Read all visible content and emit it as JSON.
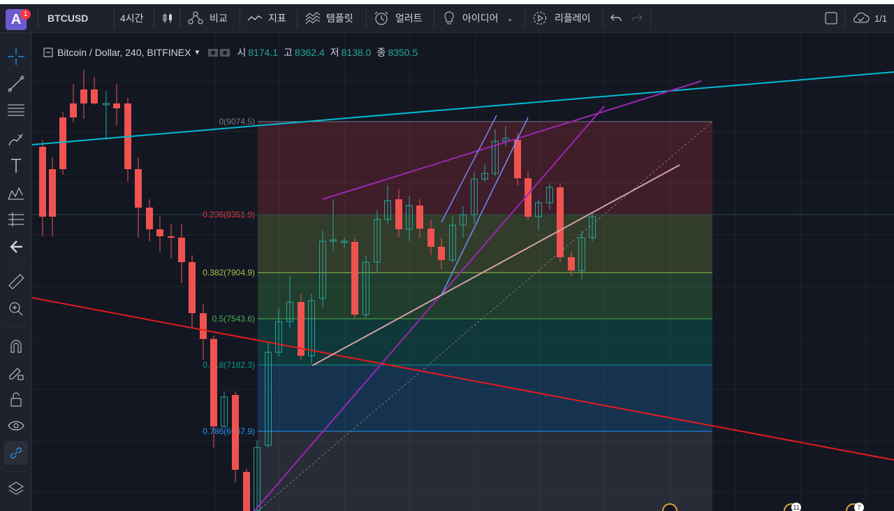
{
  "toolbar": {
    "avatar_letter": "A",
    "notification_count": "1",
    "symbol": "BTCUSD",
    "interval": "4시간",
    "compare_label": "비교",
    "indicators_label": "지표",
    "templates_label": "템플릿",
    "alert_label": "얼러트",
    "ideas_label": "아이디어",
    "replay_label": "리플레이",
    "layout_counter": "1/1"
  },
  "legend": {
    "title": "Bitcoin / Dollar, 240, BITFINEX",
    "open_label": "시",
    "open": "8174.1",
    "high_label": "고",
    "high": "8362.4",
    "low_label": "저",
    "low": "8138.0",
    "close_label": "종",
    "close": "8350.5"
  },
  "fib_levels": [
    {
      "label": "0(9074.5)",
      "color": "#787b86"
    },
    {
      "label": "0.236(8351.9)",
      "color": "#f23645"
    },
    {
      "label": "0.382(7904.9)",
      "color": "#a5c44a"
    },
    {
      "label": "0.5(7543.6)",
      "color": "#4caf50"
    },
    {
      "label": "0.618(7182.3)",
      "color": "#089981"
    },
    {
      "label": "0.786(6667.9)",
      "color": "#2196f3"
    }
  ],
  "badges": [
    "11",
    "7"
  ],
  "colors": {
    "background": "#131722",
    "up_candle": "#26a69a",
    "down_candle": "#ef5350",
    "cyan_trendline": "#00bcd4",
    "red_trendline": "#e31c1c",
    "purple_trendline": "#9c27b0"
  },
  "icons": [
    "crosshair-icon",
    "trendline-icon",
    "fib-icon",
    "brush-icon",
    "text-icon",
    "pattern-icon",
    "prediction-icon",
    "back-arrow-icon",
    "ruler-icon",
    "zoom-in-icon",
    "magnet-icon",
    "lock-drawing-icon",
    "unlock-icon",
    "eye-icon",
    "link-icon",
    "layers-icon"
  ]
}
